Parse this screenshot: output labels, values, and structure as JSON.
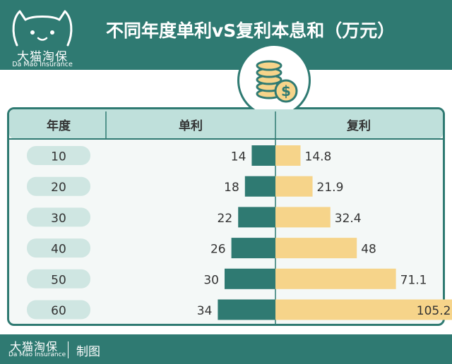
{
  "header": {
    "brand_name": "大猫淘保",
    "brand_sub": "Da Mao Insurance"
  },
  "footer": {
    "brand_name": "大猫淘保",
    "brand_sub": "Da Mao Insurance",
    "credit": "制图"
  },
  "icons": {
    "cat_logo": "cat-logo-icon",
    "coins": "coins-icon"
  },
  "colors": {
    "teal": "#2f7a72",
    "simple_bar": "#2f7a72",
    "compound_bar": "#f6d48a",
    "pill": "#cfe6e2"
  },
  "chart_data": {
    "type": "bar",
    "title": "不同年度单利vS复利本息和（万元）",
    "columns": [
      "年度",
      "单利",
      "复利"
    ],
    "categories": [
      "10",
      "20",
      "30",
      "40",
      "50",
      "60"
    ],
    "series": [
      {
        "name": "单利",
        "values": [
          14,
          18,
          22,
          26,
          30,
          34
        ],
        "labels": [
          "14",
          "18",
          "22",
          "26",
          "30",
          "34"
        ]
      },
      {
        "name": "复利",
        "values": [
          14.8,
          21.9,
          32.4,
          48,
          71.1,
          105.2
        ],
        "labels": [
          "14.8",
          "21.9",
          "32.4",
          "48",
          "71.1",
          "105.2"
        ]
      }
    ],
    "grid": false
  }
}
